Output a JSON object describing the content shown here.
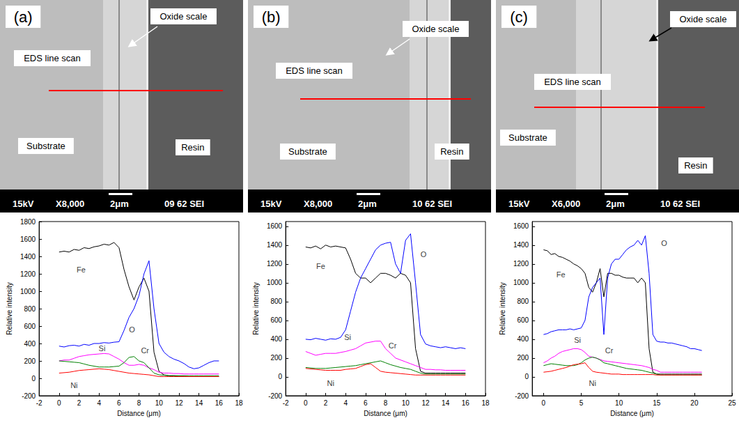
{
  "micrographs": [
    {
      "letter": "(a)",
      "labels": {
        "oxide": "Oxide scale",
        "scan": "EDS line scan",
        "substrate": "Substrate",
        "resin": "Resin"
      },
      "bar": [
        "15kV",
        "X8,000",
        "2μm",
        "09 62 SEI"
      ]
    },
    {
      "letter": "(b)",
      "labels": {
        "oxide": "Oxide scale",
        "scan": "EDS line scan",
        "substrate": "Substrate",
        "resin": "Resin"
      },
      "bar": [
        "15kV",
        "X8,000",
        "2μm",
        "10 62 SEI"
      ]
    },
    {
      "letter": "(c)",
      "labels": {
        "oxide": "Oxide scale",
        "scan": "EDS line scan",
        "substrate": "Substrate",
        "resin": "Resin"
      },
      "bar": [
        "15kV",
        "X6,000",
        "2μm",
        "10 62 SEI"
      ]
    }
  ],
  "chart_data": [
    {
      "type": "line",
      "xlabel": "Distance (μm)",
      "ylabel": "Relative intensity",
      "xlim": [
        -2,
        18
      ],
      "xticks": [
        -2,
        0,
        2,
        4,
        6,
        8,
        10,
        12,
        14,
        16,
        18
      ],
      "ylim": [
        -200,
        1800
      ],
      "yticks": [
        -200,
        0,
        200,
        400,
        600,
        800,
        1000,
        1200,
        1400,
        1600,
        1800
      ],
      "x": [
        0,
        0.5,
        1,
        1.5,
        2,
        2.5,
        3,
        3.5,
        4,
        4.5,
        5,
        5.5,
        6,
        6.5,
        7,
        7.5,
        8,
        8.5,
        9,
        9.5,
        10,
        10.5,
        11,
        11.5,
        12,
        12.5,
        13,
        13.5,
        14,
        14.5,
        15,
        15.5,
        16
      ],
      "series": [
        {
          "name": "Fe",
          "color": "#000000",
          "values": [
            1450,
            1460,
            1450,
            1480,
            1470,
            1500,
            1490,
            1510,
            1520,
            1540,
            1530,
            1560,
            1500,
            1250,
            1050,
            900,
            1050,
            1150,
            1000,
            300,
            80,
            40,
            30,
            30,
            25,
            25,
            20,
            20,
            20,
            20,
            20,
            20,
            20
          ]
        },
        {
          "name": "O",
          "color": "#0000ff",
          "values": [
            370,
            360,
            375,
            380,
            370,
            390,
            380,
            400,
            400,
            410,
            405,
            415,
            420,
            550,
            700,
            800,
            950,
            1200,
            1350,
            800,
            400,
            300,
            250,
            220,
            200,
            170,
            130,
            110,
            120,
            150,
            180,
            200,
            200
          ]
        },
        {
          "name": "Si",
          "color": "#ff00ff",
          "values": [
            200,
            210,
            210,
            230,
            250,
            260,
            270,
            275,
            280,
            285,
            280,
            250,
            220,
            180,
            150,
            150,
            160,
            150,
            120,
            100,
            70,
            60,
            60,
            55,
            55,
            50,
            50,
            50,
            50,
            50,
            50,
            50,
            50
          ]
        },
        {
          "name": "Cr",
          "color": "#008000",
          "values": [
            200,
            195,
            190,
            185,
            180,
            165,
            150,
            140,
            130,
            130,
            130,
            135,
            140,
            180,
            240,
            250,
            200,
            180,
            120,
            60,
            40,
            35,
            30,
            30,
            30,
            30,
            30,
            30,
            30,
            30,
            30,
            30,
            30
          ]
        },
        {
          "name": "Ni",
          "color": "#ff0000",
          "values": [
            60,
            65,
            70,
            80,
            90,
            95,
            100,
            105,
            110,
            105,
            100,
            90,
            80,
            70,
            60,
            55,
            50,
            45,
            40,
            30,
            20,
            20,
            20,
            20,
            20,
            20,
            20,
            20,
            20,
            20,
            20,
            20,
            20
          ]
        }
      ]
    },
    {
      "type": "line",
      "xlabel": "Distance (μm)",
      "ylabel": "Relative intensity",
      "xlim": [
        -2,
        18
      ],
      "xticks": [
        -2,
        0,
        2,
        4,
        6,
        8,
        10,
        12,
        14,
        16,
        18
      ],
      "ylim": [
        -200,
        1650
      ],
      "yticks": [
        -200,
        0,
        200,
        400,
        600,
        800,
        1000,
        1200,
        1400,
        1600
      ],
      "x": [
        0,
        0.5,
        1,
        1.5,
        2,
        2.5,
        3,
        3.5,
        4,
        4.5,
        5,
        5.5,
        6,
        6.5,
        7,
        7.5,
        8,
        8.5,
        9,
        9.5,
        10,
        10.5,
        11,
        11.5,
        12,
        12.5,
        13,
        13.5,
        14,
        14.5,
        15,
        15.5,
        16
      ],
      "series": [
        {
          "name": "Fe",
          "color": "#000000",
          "values": [
            1380,
            1370,
            1390,
            1360,
            1400,
            1380,
            1390,
            1380,
            1370,
            1250,
            1100,
            1050,
            1050,
            1000,
            1050,
            1100,
            1100,
            1080,
            1050,
            1100,
            1080,
            1000,
            300,
            60,
            40,
            40,
            40,
            40,
            40,
            40,
            40,
            40,
            40
          ]
        },
        {
          "name": "O",
          "color": "#0000ff",
          "values": [
            400,
            395,
            410,
            400,
            390,
            405,
            400,
            420,
            500,
            700,
            900,
            1050,
            1150,
            1250,
            1350,
            1400,
            1420,
            1430,
            1200,
            1100,
            1450,
            1520,
            1000,
            450,
            350,
            330,
            320,
            310,
            320,
            310,
            300,
            310,
            300
          ]
        },
        {
          "name": "Si",
          "color": "#ff00ff",
          "values": [
            270,
            250,
            230,
            240,
            250,
            250,
            250,
            260,
            270,
            285,
            300,
            330,
            360,
            370,
            380,
            380,
            300,
            250,
            200,
            180,
            160,
            140,
            120,
            100,
            80,
            80,
            75,
            75,
            70,
            70,
            70,
            70,
            70
          ]
        },
        {
          "name": "Cr",
          "color": "#008000",
          "values": [
            100,
            95,
            90,
            90,
            90,
            95,
            100,
            105,
            110,
            115,
            120,
            130,
            140,
            150,
            160,
            170,
            150,
            130,
            115,
            100,
            90,
            80,
            60,
            40,
            30,
            30,
            30,
            30,
            30,
            30,
            30,
            30,
            30
          ]
        },
        {
          "name": "Ni",
          "color": "#ff0000",
          "values": [
            90,
            85,
            80,
            75,
            70,
            70,
            70,
            70,
            80,
            85,
            90,
            110,
            130,
            140,
            100,
            60,
            50,
            45,
            40,
            35,
            30,
            25,
            20,
            20,
            20,
            20,
            20,
            20,
            20,
            20,
            20,
            20,
            20
          ]
        }
      ]
    },
    {
      "type": "line",
      "xlabel": "Distance (μm)",
      "ylabel": "Relative intensity",
      "xlim": [
        -1.5,
        25
      ],
      "xticks": [
        0,
        5,
        10,
        15,
        20,
        25
      ],
      "ylim": [
        -200,
        1650
      ],
      "yticks": [
        -200,
        0,
        200,
        400,
        600,
        800,
        1000,
        1200,
        1400,
        1600
      ],
      "x": [
        0,
        0.5,
        1,
        1.5,
        2,
        2.5,
        3,
        3.5,
        4,
        4.5,
        5,
        5.5,
        6,
        6.5,
        7,
        7.5,
        8,
        8.5,
        9,
        9.5,
        10,
        10.5,
        11,
        11.5,
        12,
        12.5,
        13,
        13.5,
        14,
        14.5,
        15,
        15.5,
        16,
        16.5,
        17,
        17.5,
        18,
        18.5,
        19,
        19.5,
        20,
        20.5,
        21
      ],
      "series": [
        {
          "name": "Fe",
          "color": "#000000",
          "values": [
            1350,
            1340,
            1300,
            1310,
            1280,
            1270,
            1250,
            1230,
            1200,
            1180,
            1150,
            1100,
            950,
            900,
            1000,
            1150,
            850,
            1100,
            1100,
            1080,
            1080,
            1060,
            1050,
            1050,
            1050,
            1000,
            1050,
            1000,
            300,
            50,
            30,
            30,
            30,
            30,
            30,
            30,
            30,
            30,
            30,
            30,
            30,
            30,
            30
          ]
        },
        {
          "name": "O",
          "color": "#0000ff",
          "values": [
            450,
            460,
            480,
            490,
            500,
            500,
            500,
            510,
            500,
            510,
            520,
            600,
            850,
            950,
            1000,
            1050,
            450,
            1050,
            1200,
            1250,
            1250,
            1300,
            1350,
            1380,
            1400,
            1450,
            1400,
            1500,
            1100,
            450,
            380,
            370,
            370,
            360,
            360,
            350,
            340,
            330,
            320,
            300,
            300,
            290,
            280
          ]
        },
        {
          "name": "Si",
          "color": "#ff00ff",
          "values": [
            150,
            170,
            200,
            220,
            250,
            270,
            280,
            290,
            300,
            300,
            290,
            260,
            220,
            210,
            200,
            185,
            170,
            165,
            160,
            155,
            150,
            145,
            140,
            135,
            130,
            125,
            120,
            110,
            100,
            80,
            70,
            50,
            50,
            50,
            50,
            50,
            50,
            50,
            50,
            50,
            50,
            50,
            50
          ]
        },
        {
          "name": "Cr",
          "color": "#008000",
          "values": [
            120,
            130,
            140,
            135,
            130,
            125,
            120,
            120,
            120,
            130,
            150,
            180,
            200,
            210,
            200,
            180,
            150,
            140,
            130,
            120,
            110,
            100,
            90,
            85,
            80,
            75,
            70,
            60,
            50,
            40,
            30,
            20,
            20,
            20,
            20,
            20,
            20,
            20,
            20,
            20,
            20,
            20,
            20
          ]
        },
        {
          "name": "Ni",
          "color": "#ff0000",
          "values": [
            50,
            55,
            60,
            70,
            80,
            90,
            100,
            115,
            130,
            135,
            140,
            150,
            100,
            60,
            50,
            45,
            40,
            35,
            30,
            30,
            30,
            25,
            25,
            25,
            25,
            25,
            25,
            25,
            25,
            25,
            20,
            20,
            20,
            20,
            20,
            20,
            20,
            20,
            20,
            20,
            20,
            20,
            20
          ]
        }
      ]
    }
  ]
}
